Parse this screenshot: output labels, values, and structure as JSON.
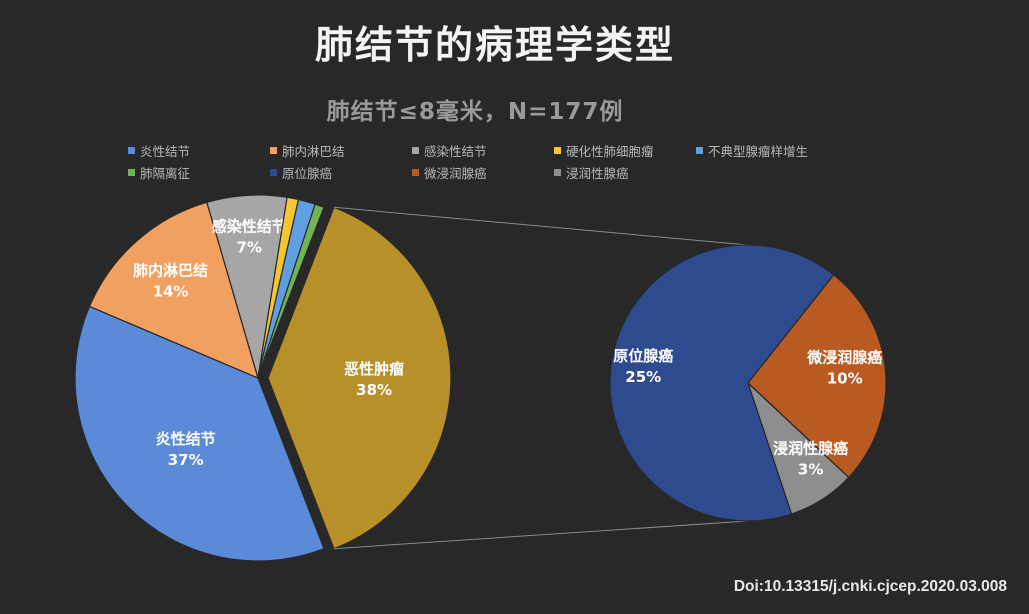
{
  "chart_data": {
    "type": "pie",
    "subtype": "pie-of-pie",
    "title": "肺结节的病理学类型",
    "subtitle": "肺结节≤8毫米，N=177例",
    "legend_position": "top",
    "primary": {
      "slices": [
        {
          "name": "炎性结节",
          "value": 37,
          "label": "37%",
          "color": "#5b8ad8",
          "show_label": true
        },
        {
          "name": "肺内淋巴结",
          "value": 14,
          "label": "14%",
          "color": "#f2a05f",
          "show_label": true
        },
        {
          "name": "感染性结节",
          "value": 7,
          "label": "7%",
          "color": "#a6a6a6",
          "show_label": true
        },
        {
          "name": "硬化性肺细胞瘤",
          "value": 1,
          "label": "",
          "color": "#f5c633",
          "show_label": false
        },
        {
          "name": "不典型腺瘤样增生",
          "value": 1.5,
          "label": "",
          "color": "#5f9ee0",
          "show_label": false
        },
        {
          "name": "肺隔离征",
          "value": 0.8,
          "label": "",
          "color": "#71b355",
          "show_label": false
        },
        {
          "name": "恶性肿瘤",
          "value": 38,
          "label": "38%",
          "color": "#b8902a",
          "show_label": true
        }
      ]
    },
    "secondary": {
      "parent": "恶性肿瘤",
      "slices": [
        {
          "name": "原位腺癌",
          "value": 25,
          "label": "25%",
          "color": "#2e4b8f"
        },
        {
          "name": "微浸润腺癌",
          "value": 10,
          "label": "10%",
          "color": "#b85a22"
        },
        {
          "name": "浸润性腺癌",
          "value": 3,
          "label": "3%",
          "color": "#8e8e8e"
        }
      ]
    },
    "legend": [
      {
        "name": "炎性结节",
        "color": "#5b8ad8"
      },
      {
        "name": "肺内淋巴结",
        "color": "#f2a05f"
      },
      {
        "name": "感染性结节",
        "color": "#a6a6a6"
      },
      {
        "name": "硬化性肺细胞瘤",
        "color": "#f5c633"
      },
      {
        "name": "不典型腺瘤样增生",
        "color": "#5f9ee0"
      },
      {
        "name": "肺隔离征",
        "color": "#71b355"
      },
      {
        "name": "原位腺癌",
        "color": "#2e4b8f"
      },
      {
        "name": "微浸润腺癌",
        "color": "#b85a22"
      },
      {
        "name": "浸润性腺癌",
        "color": "#8e8e8e"
      }
    ]
  },
  "footer": {
    "doi": "Doi:10.13315/j.cnki.cjcep.2020.03.008"
  }
}
